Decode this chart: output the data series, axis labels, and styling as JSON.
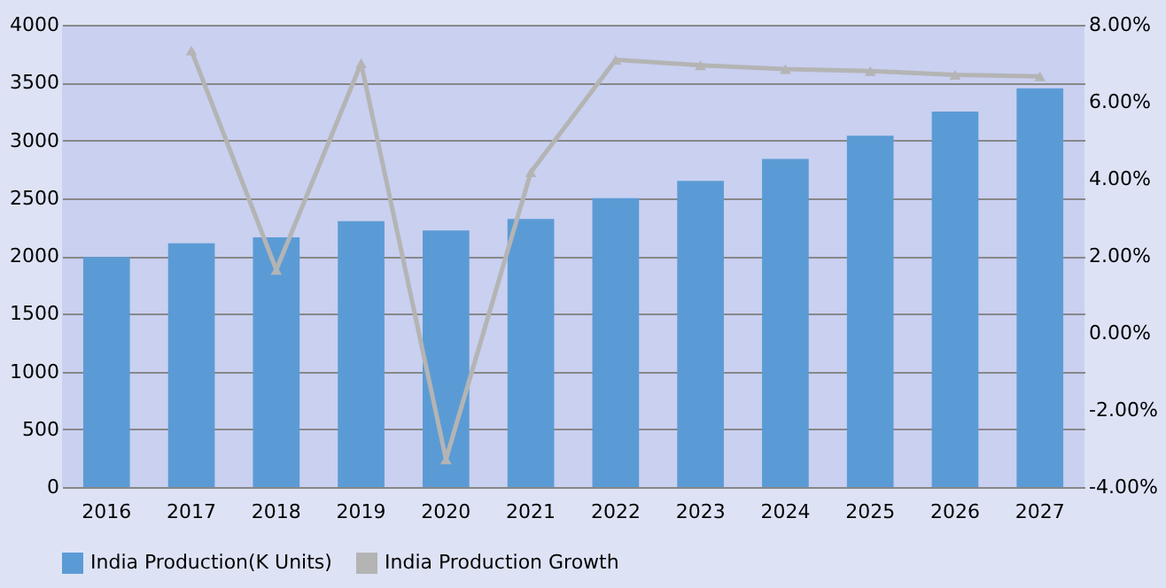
{
  "chart_data": {
    "type": "bar",
    "categories": [
      "2016",
      "2017",
      "2018",
      "2019",
      "2020",
      "2021",
      "2022",
      "2023",
      "2024",
      "2025",
      "2026",
      "2027"
    ],
    "series": [
      {
        "name": "India Production(K Units)",
        "color": "#5b9bd5",
        "values": [
          1990,
          2110,
          2160,
          2300,
          2220,
          2320,
          2500,
          2650,
          2840,
          3040,
          3250,
          3450
        ]
      },
      {
        "name": "India Production Growth",
        "type": "line",
        "axis": "y2",
        "color": "#b4b4b4",
        "marker": "triangle",
        "values": [
          null,
          7.33,
          1.64,
          7.0,
          -3.28,
          4.17,
          7.09,
          6.95,
          6.85,
          6.8,
          6.7,
          6.66
        ]
      }
    ],
    "ylim": [
      0,
      4000
    ],
    "yticks": [
      0,
      500,
      1000,
      1500,
      2000,
      2500,
      3000,
      3500,
      4000
    ],
    "y2lim": [
      -4,
      8
    ],
    "y2ticks": [
      {
        "value": -4,
        "label": "-4.00%"
      },
      {
        "value": -2,
        "label": "-2.00%"
      },
      {
        "value": 0,
        "label": "0.00%"
      },
      {
        "value": 2,
        "label": "2.00%"
      },
      {
        "value": 4,
        "label": "4.00%"
      },
      {
        "value": 6,
        "label": "6.00%"
      },
      {
        "value": 8,
        "label": "8.00%"
      }
    ],
    "grid": "y",
    "legend": "bottom"
  }
}
